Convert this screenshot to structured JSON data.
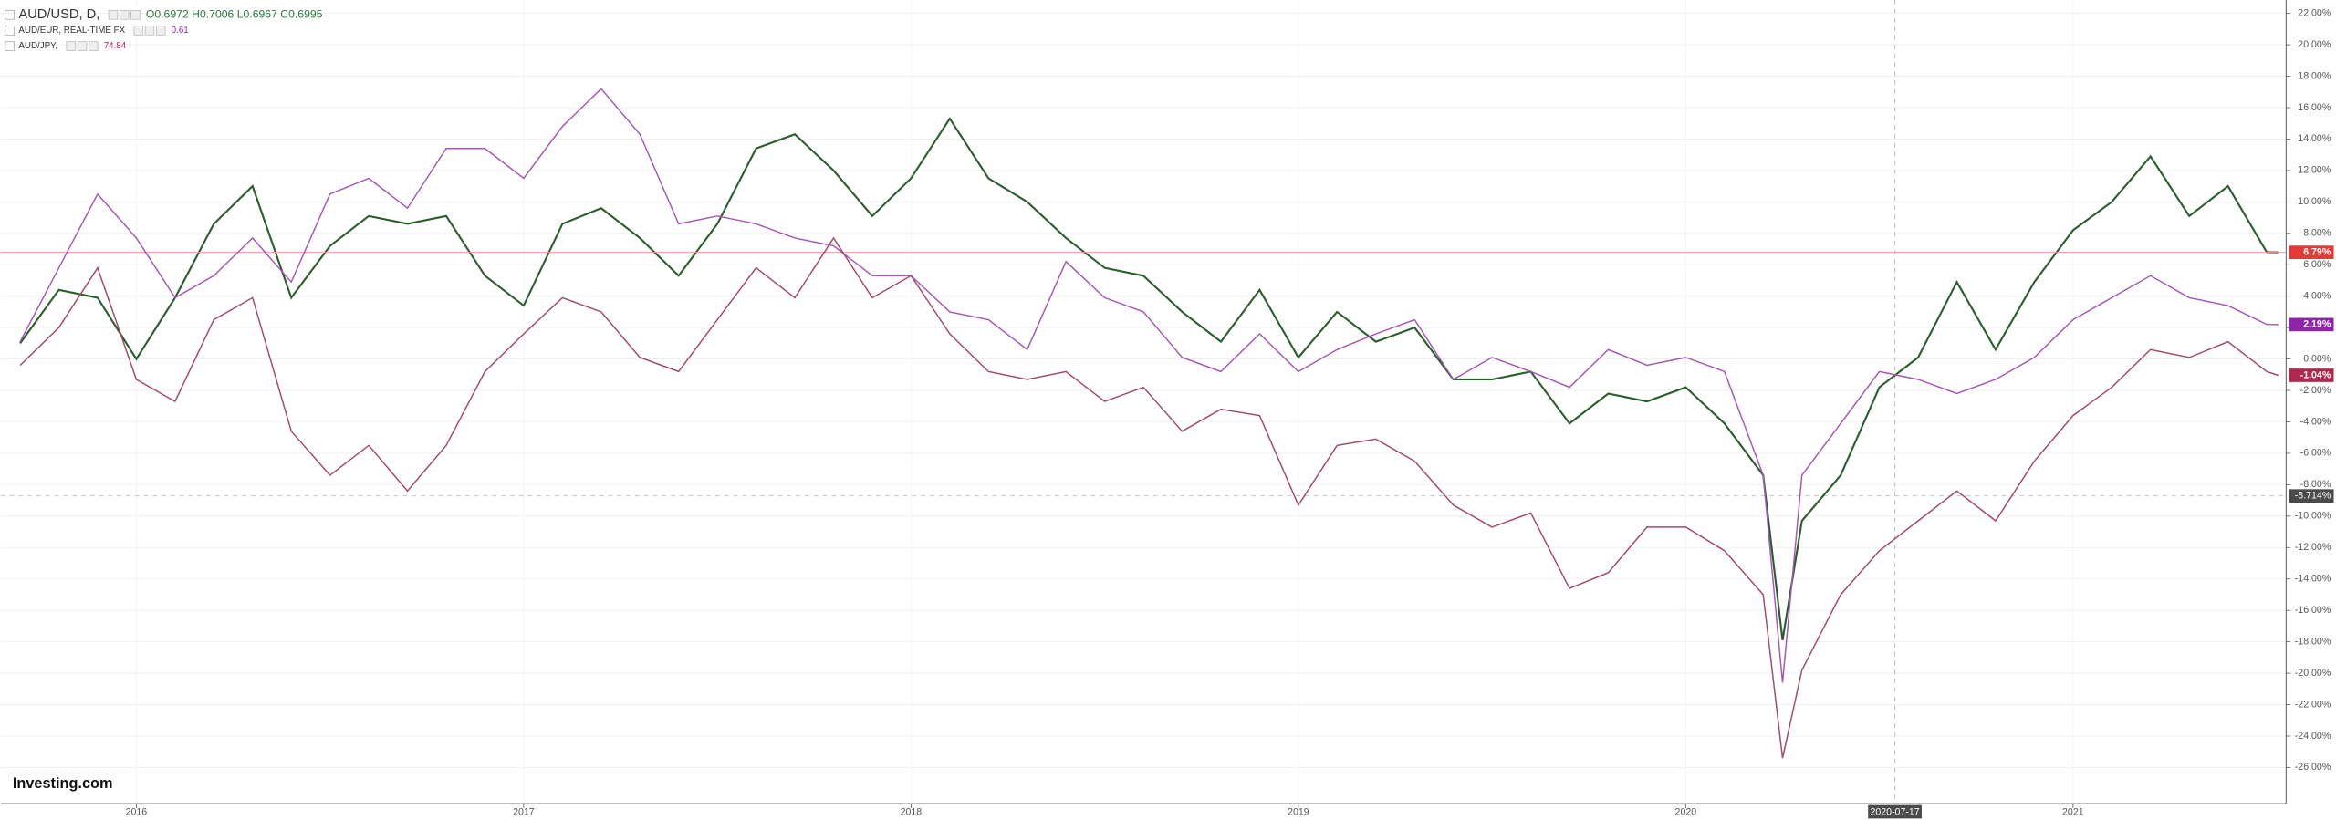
{
  "chart_data": {
    "type": "line",
    "logo": "Investing.com",
    "xlim": [
      2015.65,
      2021.55
    ],
    "ylim": [
      -28.3,
      22.85
    ],
    "xticks": [
      2016,
      2017,
      2018,
      2019,
      2020,
      2021
    ],
    "yticks": [
      {
        "value": 22,
        "label": "22.00%"
      },
      {
        "value": 20,
        "label": "20.00%"
      },
      {
        "value": 18,
        "label": "18.00%"
      },
      {
        "value": 16,
        "label": "16.00%"
      },
      {
        "value": 14,
        "label": "14.00%"
      },
      {
        "value": 12,
        "label": "12.00%"
      },
      {
        "value": 10,
        "label": "10.00%"
      },
      {
        "value": 8,
        "label": "8.00%"
      },
      {
        "value": 6,
        "label": "6.00%"
      },
      {
        "value": 4,
        "label": "4.00%"
      },
      {
        "value": 2,
        "label": "2.00%"
      },
      {
        "value": 0,
        "label": "0.00%"
      },
      {
        "value": -2,
        "label": "-2.00%"
      },
      {
        "value": -4,
        "label": "-4.00%"
      },
      {
        "value": -6,
        "label": "-6.00%"
      },
      {
        "value": -8,
        "label": "-8.00%"
      },
      {
        "value": -10,
        "label": "-10.00%"
      },
      {
        "value": -12,
        "label": "-12.00%"
      },
      {
        "value": -14,
        "label": "-14.00%"
      },
      {
        "value": -16,
        "label": "-16.00%"
      },
      {
        "value": -18,
        "label": "-18.00%"
      },
      {
        "value": -20,
        "label": "-20.00%"
      },
      {
        "value": -22,
        "label": "-22.00%"
      },
      {
        "value": -24,
        "label": "-24.00%"
      },
      {
        "value": -26,
        "label": "-26.00%"
      }
    ],
    "grid": true,
    "x": [
      2015.7,
      2015.8,
      2015.9,
      2016.0,
      2016.1,
      2016.2,
      2016.3,
      2016.4,
      2016.5,
      2016.6,
      2016.7,
      2016.8,
      2016.9,
      2017.0,
      2017.1,
      2017.2,
      2017.3,
      2017.4,
      2017.5,
      2017.6,
      2017.7,
      2017.8,
      2017.9,
      2018.0,
      2018.1,
      2018.2,
      2018.3,
      2018.4,
      2018.5,
      2018.6,
      2018.7,
      2018.8,
      2018.9,
      2019.0,
      2019.1,
      2019.2,
      2019.3,
      2019.4,
      2019.5,
      2019.6,
      2019.7,
      2019.8,
      2019.9,
      2020.0,
      2020.1,
      2020.2,
      2020.25,
      2020.3,
      2020.4,
      2020.5,
      2020.6,
      2020.7,
      2020.8,
      2020.9,
      2021.0,
      2021.1,
      2021.2,
      2021.3,
      2021.4,
      2021.5,
      2021.53
    ],
    "series": [
      {
        "name": "AUD/USD, D,",
        "quote": "O0.6972 H0.7006 L0.6967 C0.6995",
        "color": "#2a5e2c",
        "label_color": "#e53935",
        "last_label": "6.79%",
        "values": [
          1,
          4.4,
          3.9,
          0,
          3.9,
          8.6,
          11,
          3.9,
          7.2,
          9.1,
          8.6,
          9.1,
          5.3,
          3.4,
          8.6,
          9.6,
          7.7,
          5.3,
          8.6,
          13.4,
          14.3,
          12,
          9.1,
          11.5,
          15.3,
          11.5,
          10,
          7.7,
          5.8,
          5.3,
          3,
          1.1,
          4.4,
          0.1,
          3,
          1.1,
          2,
          -1.3,
          -1.3,
          -0.8,
          -4.1,
          -2.2,
          -2.7,
          -1.8,
          -4.1,
          -7.4,
          -17.9,
          -10.3,
          -7.4,
          -1.8,
          0.1,
          4.9,
          0.6,
          4.9,
          8.2,
          10,
          12.9,
          9.1,
          11,
          6.8,
          6.79
        ]
      },
      {
        "name": "AUD/EUR, REAL-TIME FX",
        "quote": "0.61",
        "color": "#a557b5",
        "label_color": "#8e24aa",
        "last_label": "2.19%",
        "values": [
          1.1,
          5.8,
          10.5,
          7.7,
          3.9,
          5.3,
          7.7,
          4.9,
          10.5,
          11.5,
          9.6,
          13.4,
          13.4,
          11.5,
          14.8,
          17.2,
          14.3,
          8.6,
          9.1,
          8.6,
          7.7,
          7.2,
          5.3,
          5.3,
          3,
          2.5,
          0.6,
          6.2,
          3.9,
          3,
          0.1,
          -0.8,
          1.6,
          -0.8,
          0.6,
          1.6,
          2.5,
          -1.3,
          0.1,
          -0.8,
          -1.8,
          0.6,
          -0.4,
          0.1,
          -0.8,
          -7.4,
          -20.6,
          -7.4,
          -4.1,
          -0.8,
          -1.3,
          -2.2,
          -1.3,
          0.1,
          2.5,
          3.9,
          5.3,
          3.9,
          3.4,
          2.2,
          2.19
        ]
      },
      {
        "name": "AUD/JPY,",
        "quote": "74.84",
        "color": "#a34a63",
        "label_color": "#b0284f",
        "last_label": "-1.04%",
        "values": [
          -0.4,
          2,
          5.8,
          -1.3,
          -2.7,
          2.5,
          3.9,
          -4.6,
          -7.4,
          -5.5,
          -8.4,
          -5.5,
          -0.8,
          1.6,
          3.9,
          3,
          0.1,
          -0.8,
          2.5,
          5.8,
          3.9,
          7.7,
          3.9,
          5.3,
          1.6,
          -0.8,
          -1.3,
          -0.8,
          -2.7,
          -1.8,
          -4.6,
          -3.2,
          -3.6,
          -9.3,
          -5.5,
          -5.1,
          -6.5,
          -9.3,
          -10.7,
          -9.8,
          -14.6,
          -13.6,
          -10.7,
          -10.7,
          -12.2,
          -15,
          -25.4,
          -19.8,
          -15,
          -12.2,
          -10.3,
          -8.4,
          -10.3,
          -6.5,
          -3.6,
          -1.8,
          0.6,
          0.1,
          1.1,
          -0.8,
          -1.04
        ]
      }
    ],
    "crosshair": {
      "x": 2020.54,
      "x_label": "2020-07-17",
      "y": -8.714,
      "y_label": "-8.714%"
    }
  }
}
